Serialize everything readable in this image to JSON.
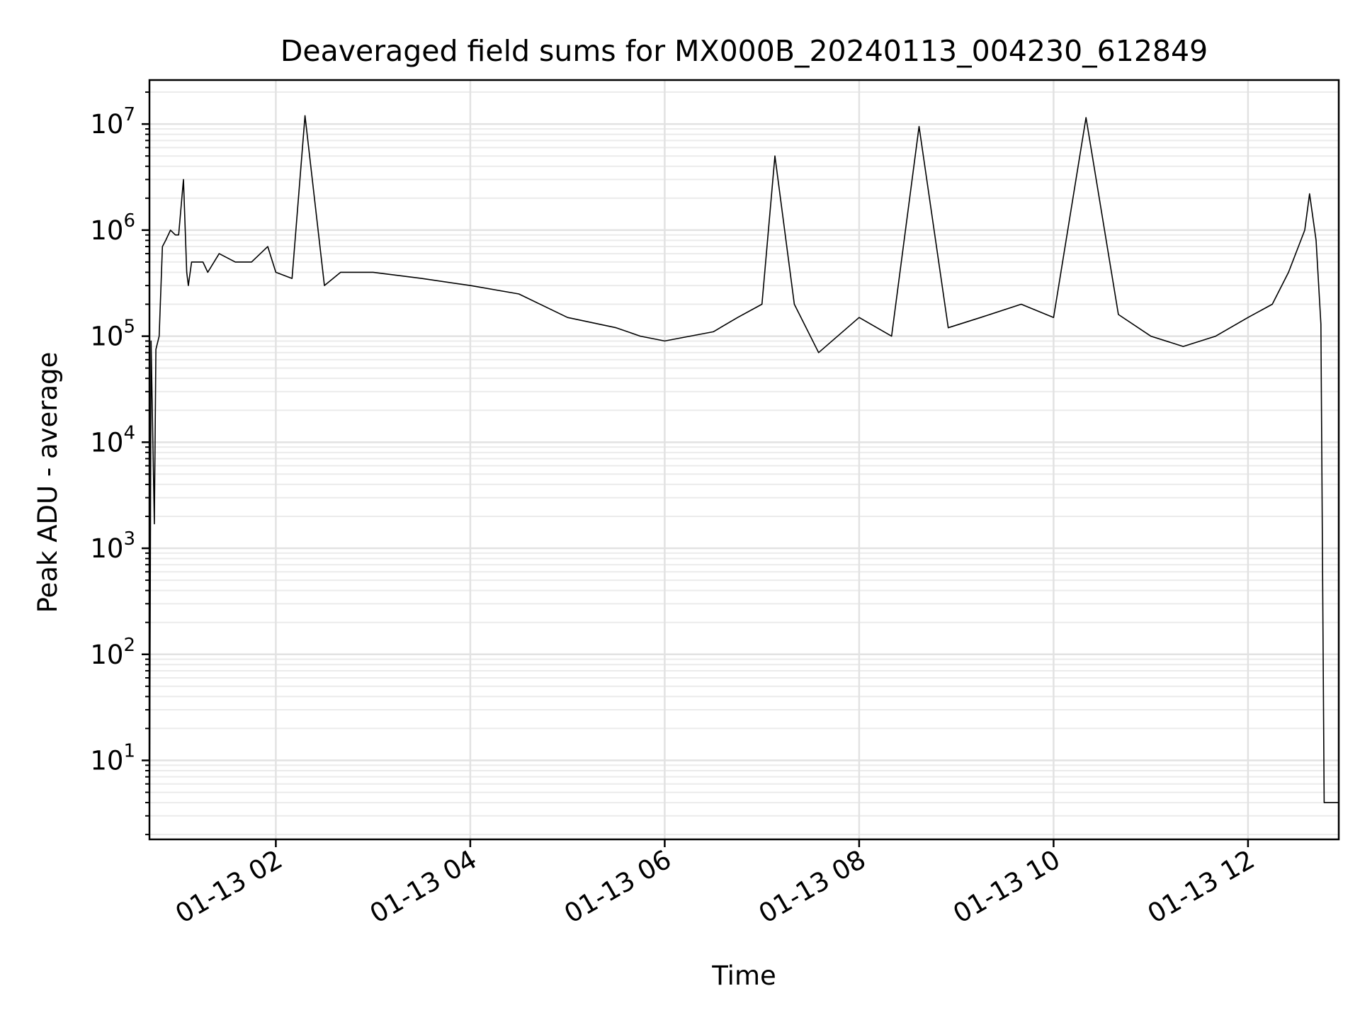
{
  "chart_data": {
    "type": "line",
    "title": "Deaveraged field sums for MX000B_20240113_004230_612849",
    "xlabel": "Time",
    "ylabel": "Peak ADU - average",
    "x_axis": {
      "kind": "datetime",
      "range": [
        "2024-01-13 00:42",
        "2024-01-13 12:56"
      ],
      "tick_labels": [
        "01-13 02",
        "01-13 04",
        "01-13 06",
        "01-13 08",
        "01-13 10",
        "01-13 12"
      ],
      "tick_label_rotation_deg": 30
    },
    "y_axis": {
      "scale": "log",
      "range": [
        1.8,
        26000000
      ],
      "tick_labels": [
        {
          "base": "10",
          "exp": "1"
        },
        {
          "base": "10",
          "exp": "2"
        },
        {
          "base": "10",
          "exp": "3"
        },
        {
          "base": "10",
          "exp": "4"
        },
        {
          "base": "10",
          "exp": "5"
        },
        {
          "base": "10",
          "exp": "6"
        },
        {
          "base": "10",
          "exp": "7"
        }
      ]
    },
    "grid": "major and minor, light gray",
    "line_color": "#000000",
    "series": [
      {
        "x": [
          "2024-01-13 00:42",
          "2024-01-13 00:43",
          "2024-01-13 00:45",
          "2024-01-13 00:46",
          "2024-01-13 00:48",
          "2024-01-13 00:50",
          "2024-01-13 00:52",
          "2024-01-13 00:55",
          "2024-01-13 00:58",
          "2024-01-13 01:00",
          "2024-01-13 01:03",
          "2024-01-13 01:05",
          "2024-01-13 01:06",
          "2024-01-13 01:08",
          "2024-01-13 01:15",
          "2024-01-13 01:18",
          "2024-01-13 01:25",
          "2024-01-13 01:35",
          "2024-01-13 01:45",
          "2024-01-13 01:55",
          "2024-01-13 02:00",
          "2024-01-13 02:10",
          "2024-01-13 02:18",
          "2024-01-13 02:30",
          "2024-01-13 02:40",
          "2024-01-13 03:00",
          "2024-01-13 03:30",
          "2024-01-13 04:00",
          "2024-01-13 04:30",
          "2024-01-13 05:00",
          "2024-01-13 05:30",
          "2024-01-13 05:45",
          "2024-01-13 06:00",
          "2024-01-13 06:30",
          "2024-01-13 06:45",
          "2024-01-13 07:00",
          "2024-01-13 07:08",
          "2024-01-13 07:20",
          "2024-01-13 07:35",
          "2024-01-13 08:00",
          "2024-01-13 08:20",
          "2024-01-13 08:37",
          "2024-01-13 08:55",
          "2024-01-13 09:15",
          "2024-01-13 09:40",
          "2024-01-13 10:00",
          "2024-01-13 10:20",
          "2024-01-13 10:40",
          "2024-01-13 11:00",
          "2024-01-13 11:20",
          "2024-01-13 11:40",
          "2024-01-13 12:00",
          "2024-01-13 12:15",
          "2024-01-13 12:25",
          "2024-01-13 12:35",
          "2024-01-13 12:38",
          "2024-01-13 12:42",
          "2024-01-13 12:45",
          "2024-01-13 12:47",
          "2024-01-13 12:50",
          "2024-01-13 12:56"
        ],
        "y": [
          1.8,
          90000,
          1700,
          75000,
          100000,
          700000,
          800000,
          1000000,
          900000,
          900000,
          3000000,
          400000,
          300000,
          500000,
          500000,
          400000,
          600000,
          500000,
          500000,
          700000,
          400000,
          350000,
          12000000,
          300000,
          400000,
          400000,
          350000,
          300000,
          250000,
          150000,
          120000,
          100000,
          90000,
          110000,
          150000,
          200000,
          5000000,
          200000,
          70000,
          150000,
          100000,
          9500000,
          120000,
          150000,
          200000,
          150000,
          11500000,
          160000,
          100000,
          80000,
          100000,
          150000,
          200000,
          400000,
          1000000,
          2200000,
          800000,
          130000,
          4,
          4,
          4
        ]
      }
    ]
  }
}
